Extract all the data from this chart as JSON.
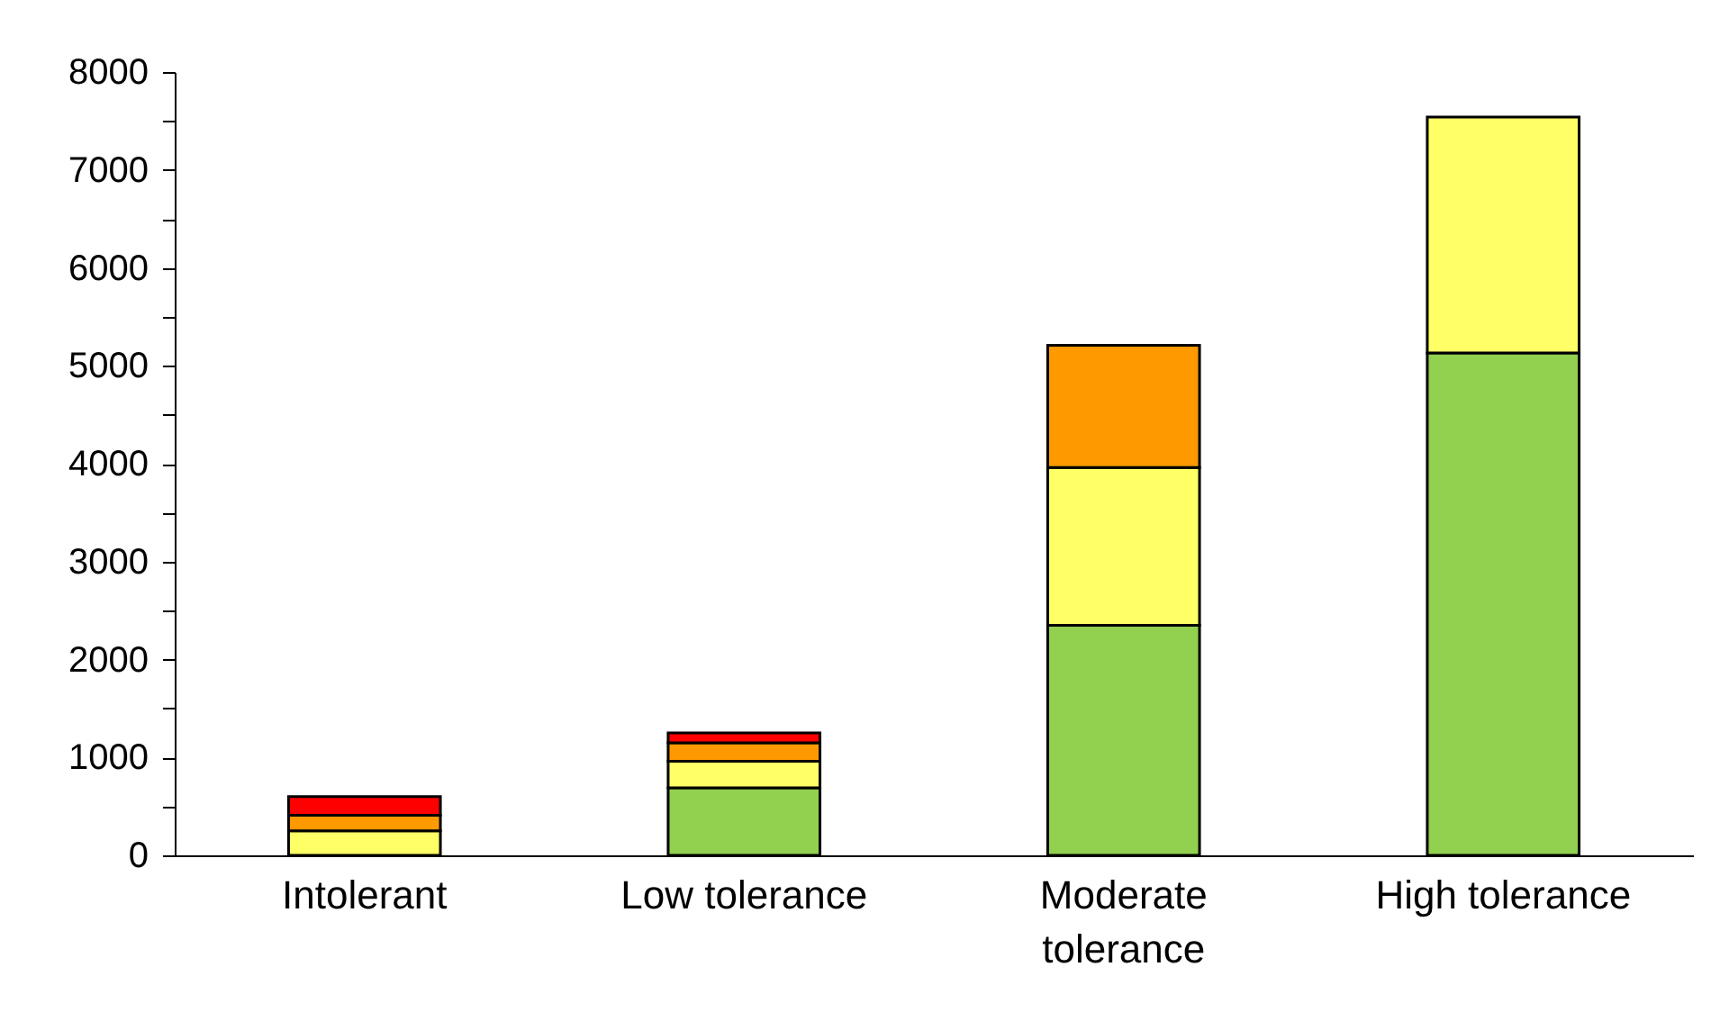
{
  "chart_data": {
    "type": "bar",
    "stacked": true,
    "categories": [
      "Intolerant",
      "Low tolerance",
      "Moderate\ntolerance",
      "High tolerance"
    ],
    "series": [
      {
        "color": "#92d050",
        "values": [
          0,
          690,
          2350,
          5130
        ]
      },
      {
        "color": "#ffff66",
        "values": [
          250,
          270,
          1610,
          2410
        ]
      },
      {
        "color": "#ff9900",
        "values": [
          160,
          190,
          1250,
          null
        ]
      },
      {
        "color": "#ff0000",
        "values": [
          190,
          100,
          null,
          null
        ]
      }
    ],
    "ylim": [
      0,
      8000
    ],
    "yticks": [
      0,
      {
        "value": 500,
        "label": null
      },
      1000,
      {
        "value": 1500,
        "label": null
      },
      2000,
      {
        "value": 2500,
        "label": null
      },
      3000,
      {
        "value": 3500,
        "label": null
      },
      4000,
      {
        "value": 4500,
        "label": null
      },
      5000,
      {
        "value": 5500,
        "label": null
      },
      6000,
      {
        "value": 6500,
        "label": null
      },
      7000,
      {
        "value": 7500,
        "label": null
      },
      8000
    ],
    "grid": false
  }
}
